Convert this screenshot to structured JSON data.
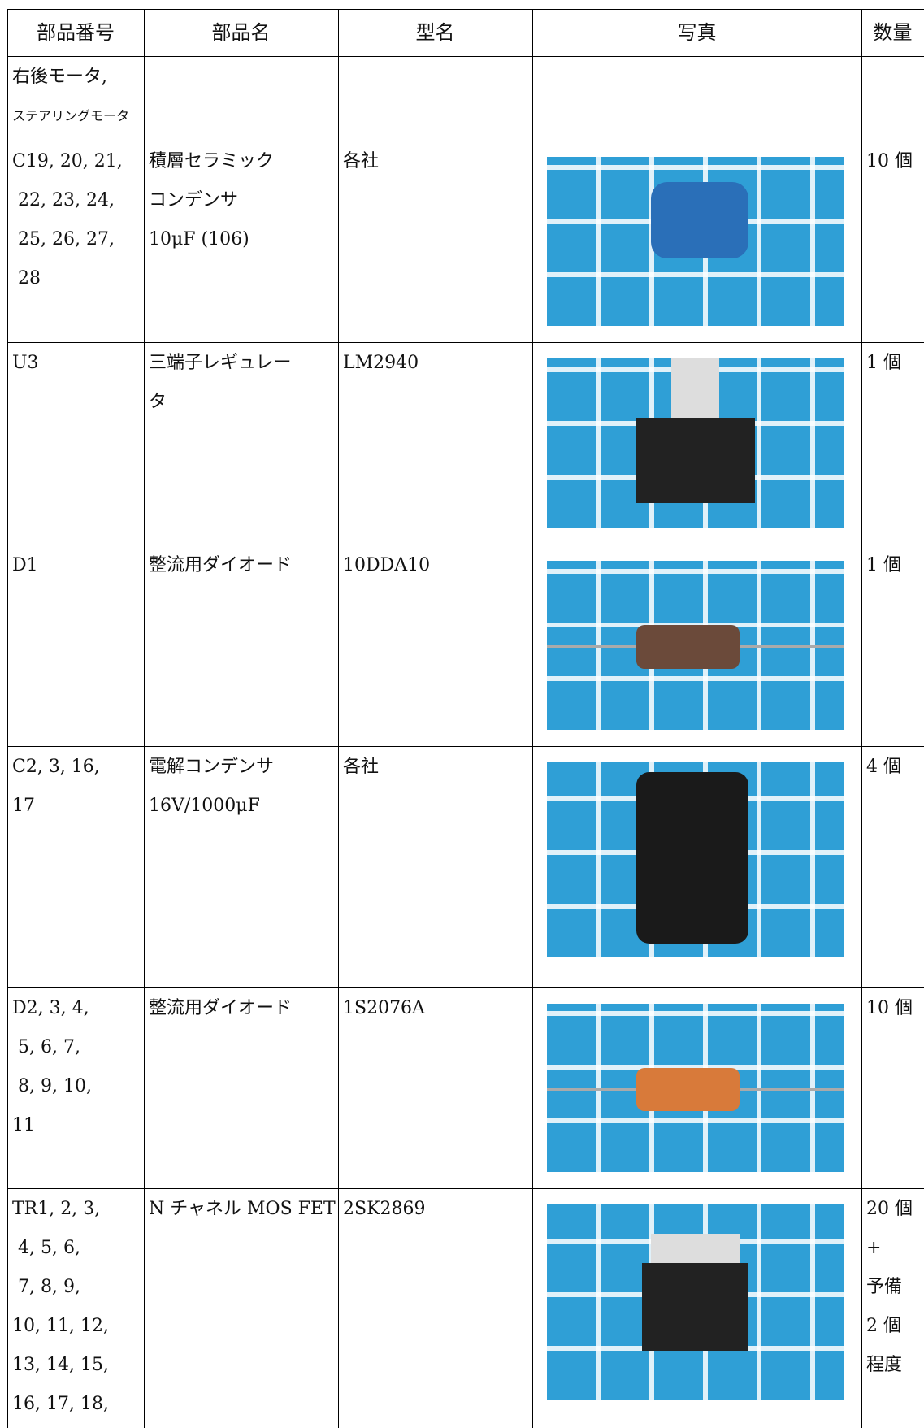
{
  "table": {
    "header": [
      "部品番号",
      "部品名",
      "型名",
      "写真",
      "数量"
    ],
    "rows": [
      {
        "part_no": [
          "右後モータ,",
          "ステアリングモータ"
        ]
      },
      {
        "part_no": [
          "C19, 20, 21,",
          " 22, 23, 24,",
          " 25, 26, 27,",
          " 28"
        ],
        "name": [
          "積層セラミック",
          "コンデンサ",
          "10μF (106)"
        ],
        "model": [
          "各社"
        ],
        "qty": [
          "10 個"
        ]
      },
      {
        "part_no": [
          "U3"
        ],
        "name": [
          "三端子レギュレー",
          "タ"
        ],
        "model": [
          "LM2940"
        ],
        "qty": [
          "1 個"
        ]
      },
      {
        "part_no": [
          "D1"
        ],
        "name": [
          "整流用ダイオード"
        ],
        "model": [
          "10DDA10"
        ],
        "qty": [
          "1 個"
        ]
      },
      {
        "part_no": [
          "C2, 3, 16,",
          "17"
        ],
        "name": [
          "電解コンデンサ",
          "16V/1000μF"
        ],
        "model": [
          "各社"
        ],
        "qty": [
          "4 個"
        ]
      },
      {
        "part_no": [
          "D2, 3, 4,",
          " 5, 6, 7,",
          " 8, 9, 10,",
          "11"
        ],
        "name": [
          "整流用ダイオード"
        ],
        "model": [
          "1S2076A"
        ],
        "qty": [
          "10 個"
        ]
      },
      {
        "part_no": [
          "TR1, 2, 3,",
          " 4, 5, 6,",
          " 7, 8, 9,",
          "10, 11, 12,",
          "13, 14, 15,",
          "16, 17, 18,"
        ],
        "name": [
          "N チャネル MOS FET"
        ],
        "model": [
          "2SK2869"
        ],
        "qty": [
          "20 個",
          "+",
          "予備",
          "2 個",
          "程度"
        ]
      }
    ]
  }
}
